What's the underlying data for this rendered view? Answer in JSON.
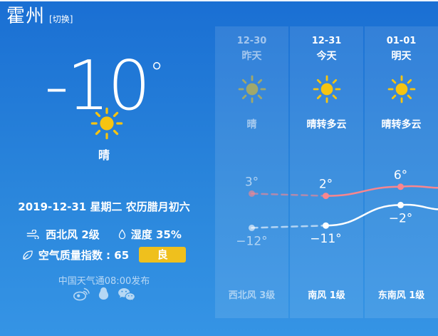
{
  "header": {
    "city": "霍州",
    "switch_label": "[切换]"
  },
  "current": {
    "temperature": "-10",
    "degree": "°",
    "condition": "晴",
    "date_line": "2019-12-31 星期二 农历腊月初六",
    "wind": "西北风 2级",
    "humidity": "湿度 35%",
    "aqi_label": "空气质量指数 : 65",
    "aqi_badge": "良",
    "release": "中国天气通08:00发布",
    "share_icons": [
      "weibo-icon",
      "qq-icon",
      "wechat-icon"
    ]
  },
  "forecast": {
    "days": [
      {
        "date": "12-30",
        "day": "昨天",
        "condition": "晴",
        "wind": "西北风 3级",
        "high": 3,
        "low": -12
      },
      {
        "date": "12-31",
        "day": "今天",
        "condition": "晴转多云",
        "wind": "南风 1级",
        "high": 2,
        "low": -11
      },
      {
        "date": "01-01",
        "day": "明天",
        "condition": "晴转多云",
        "wind": "东南风 1级",
        "high": 6,
        "low": -2
      }
    ]
  },
  "chart_data": {
    "type": "line",
    "title": "3-day temperature trend",
    "categories": [
      "昨天",
      "今天",
      "明天"
    ],
    "series": [
      {
        "name": "high",
        "values": [
          3,
          2,
          6
        ],
        "labels": [
          "3°",
          "2°",
          "6°"
        ],
        "color": "#f9868e",
        "dim_color": "rgba(249,134,142,0.62)"
      },
      {
        "name": "low",
        "values": [
          -12,
          -11,
          -2
        ],
        "labels": [
          "−12°",
          "−11°",
          "−2°"
        ],
        "color": "#ffffff",
        "dim_color": "rgba(255,255,255,0.60)"
      }
    ],
    "ylim": [
      -15,
      8
    ],
    "grid": false,
    "legend": "none",
    "note": "yesterday segment drawn dashed/dimmed, lines continue past right edge"
  },
  "colors": {
    "bg_top": "#1a6fd3",
    "bg_bottom": "#3594e5",
    "panel_overlay": "rgba(255,255,255,0.10)",
    "sun": "#f6c411",
    "aqi_badge_bg": "#efc01d",
    "line_high": "#f9868e",
    "line_low": "#ffffff"
  }
}
